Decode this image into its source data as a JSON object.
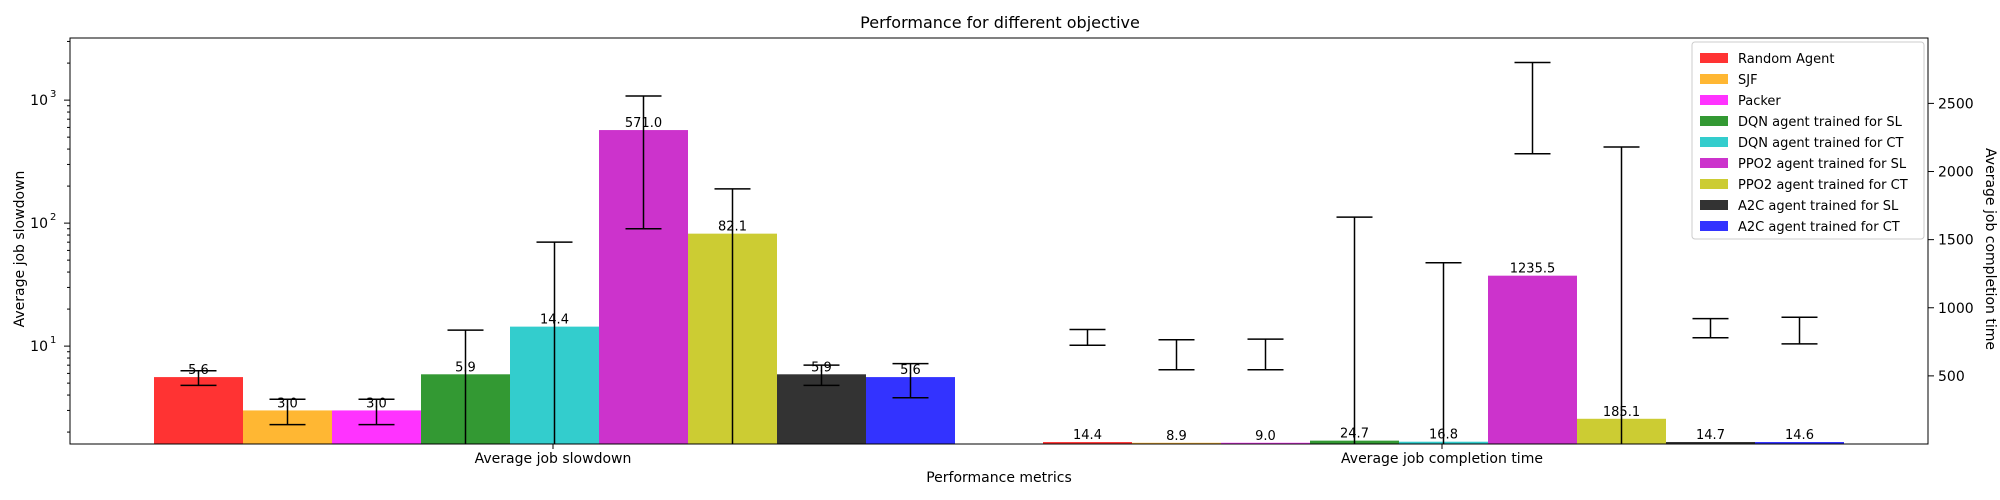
{
  "chart_data": {
    "type": "bar",
    "title": "Performance for different objective",
    "xlabel": "Performance metrics",
    "ylabel_left": "Average job slowdown",
    "ylabel_right": "Average job completion time",
    "left_axis": {
      "scale": "log",
      "ylim": [
        1.6,
        3200
      ],
      "ticks": [
        10,
        100,
        1000
      ],
      "tick_labels": [
        "10",
        "10",
        "10"
      ],
      "tick_exponents": [
        "1",
        "2",
        "3"
      ]
    },
    "right_axis": {
      "scale": "linear",
      "ylim": [
        0,
        2980
      ],
      "ticks": [
        500,
        1000,
        1500,
        2000,
        2500
      ],
      "tick_labels": [
        "500",
        "1000",
        "1500",
        "2000",
        "2500"
      ]
    },
    "categories": [
      "Average job slowdown",
      "Average job completion time"
    ],
    "series": [
      {
        "name": "Random Agent",
        "color": "#ff0000",
        "slowdown": 5.6,
        "slowdown_err": [
          4.8,
          6.3
        ],
        "completion": 14.4,
        "completion_label": "14.4",
        "completion_err": [
          725,
          840
        ]
      },
      {
        "name": "SJF",
        "color": "#ffa500",
        "slowdown": 3.0,
        "slowdown_err": [
          2.3,
          3.7
        ],
        "completion": 8.9,
        "completion_label": "8.9",
        "completion_err": [
          545,
          765
        ]
      },
      {
        "name": "Packer",
        "color": "#ff00ff",
        "slowdown": 3.0,
        "slowdown_err": [
          2.3,
          3.7
        ],
        "completion": 9.0,
        "completion_label": "9.0",
        "completion_err": [
          545,
          770
        ]
      },
      {
        "name": "DQN agent trained for SL",
        "color": "#008000",
        "slowdown": 5.9,
        "slowdown_err": [
          1.6,
          13.5
        ],
        "completion": 24.7,
        "completion_label": "24.7",
        "completion_err": [
          0,
          1665
        ]
      },
      {
        "name": "DQN agent trained for CT",
        "color": "#00c0c0",
        "slowdown": 14.4,
        "slowdown_err": [
          1.6,
          70
        ],
        "completion": 16.8,
        "completion_label": "16.8",
        "completion_err": [
          0,
          1330
        ]
      },
      {
        "name": "PPO2 agent trained for SL",
        "color": "#bf00bf",
        "slowdown": 571.0,
        "slowdown_err": [
          90,
          1080
        ],
        "completion": 1235.5,
        "completion_label": "1235.5",
        "completion_err": [
          2130,
          2800
        ]
      },
      {
        "name": "PPO2 agent trained for CT",
        "color": "#bfbf00",
        "slowdown": 82.1,
        "slowdown_err": [
          1.6,
          190
        ],
        "completion": 185.1,
        "completion_label": "185.1",
        "completion_err": [
          0,
          2180
        ]
      },
      {
        "name": "A2C agent trained for SL",
        "color": "#000000",
        "slowdown": 5.9,
        "slowdown_err": [
          4.8,
          7.0
        ],
        "completion": 14.7,
        "completion_label": "14.7",
        "completion_err": [
          780,
          920
        ]
      },
      {
        "name": "A2C agent trained for CT",
        "color": "#0000ff",
        "slowdown": 5.6,
        "slowdown_err": [
          3.8,
          7.2
        ],
        "completion": 14.6,
        "completion_label": "14.6",
        "completion_err": [
          735,
          930
        ]
      }
    ],
    "legend_position": "top-right",
    "grid": false
  }
}
